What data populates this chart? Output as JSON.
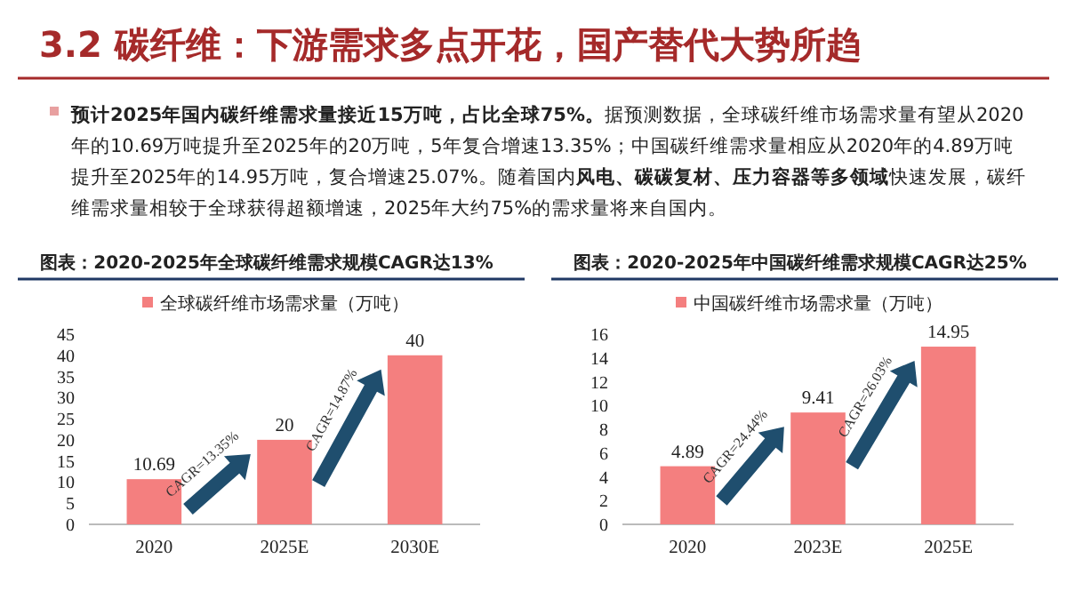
{
  "chart_data": [
    {
      "type": "other",
      "title": "3.2 碳纤维：下游需求多点开花，国产替代大势所趋",
      "annotations": [
        "**预计2025年国内碳纤维需求量接近15万吨，占比全球75%。**据预测数据，全球碳纤维市场需求量有望从2020年的10.69万吨提升至2025年的20万吨，5年复合增速13.35%；中国碳纤维需求量相应从2020年的4.89万吨提升至2025年的14.95万吨，复合增速25.07%。随着国内**风电、碳碳复材、压力容器等多领域**快速发展，碳纤维需求量相较于全球获得超额增速，2025年大约75%的需求量将来自国内。"
      ]
    },
    {
      "type": "bar",
      "title": "图表：2020-2025年全球碳纤维需求规模CAGR达13%",
      "categories": [
        "2020",
        "2025E",
        "2030E"
      ],
      "series": [
        {
          "name": "全球碳纤维市场需求量（万吨）",
          "color": "#f47f7f",
          "values": [
            10.69,
            20,
            40
          ]
        }
      ],
      "ylim": [
        0,
        45
      ],
      "yticks": [
        0,
        5,
        10,
        15,
        20,
        25,
        30,
        35,
        40,
        45
      ],
      "data_labels": true,
      "legend": "top",
      "grid": false,
      "annotations": [
        "CAGR=13.35%",
        "CAGR=14.87%"
      ]
    },
    {
      "type": "bar",
      "title": "图表：2020-2025年中国碳纤维需求规模CAGR达25%",
      "categories": [
        "2020",
        "2023E",
        "2025E"
      ],
      "series": [
        {
          "name": "中国碳纤维市场需求量（万吨）",
          "color": "#f47f7f",
          "values": [
            4.89,
            9.41,
            14.95
          ]
        }
      ],
      "ylim": [
        0,
        16
      ],
      "yticks": [
        0,
        2,
        4,
        6,
        8,
        10,
        12,
        14,
        16
      ],
      "data_labels": true,
      "legend": "top",
      "grid": false,
      "annotations": [
        "CAGR=24.44%",
        "CAGR=26.03%"
      ]
    }
  ]
}
